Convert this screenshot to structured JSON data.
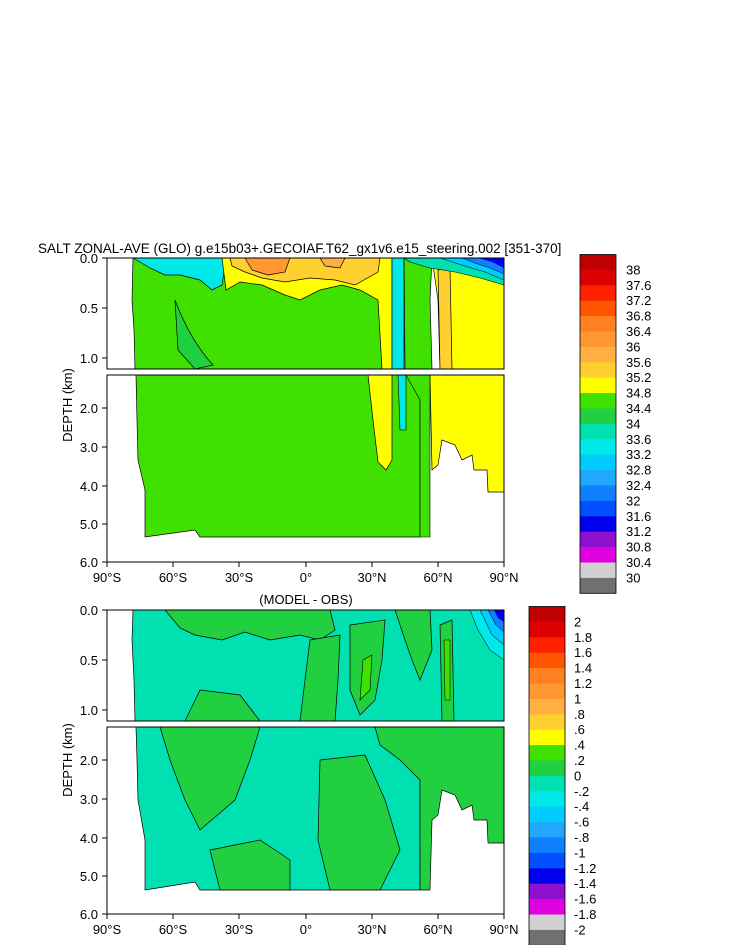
{
  "chart_data": [
    {
      "type": "heatmap",
      "title": "SALT ZONAL-AVE (GLO) g.e15b03+.GECOIAF.T62_gx1v6.e15_steering.002 [351-370]",
      "xlabel": "",
      "ylabel": "DEPTH (km)",
      "x_ticks": [
        "90°S",
        "60°S",
        "30°S",
        "0°",
        "30°N",
        "60°N",
        "90°N"
      ],
      "x_range": [
        -90,
        90
      ],
      "y_ticks_upper": [
        "0.0",
        "0.5",
        "1.0"
      ],
      "y_ticks_lower": [
        "2.0",
        "3.0",
        "4.0",
        "5.0",
        "6.0"
      ],
      "y_range": [
        0,
        6
      ],
      "colorbar": {
        "labels": [
          "38",
          "37.6",
          "37.2",
          "36.8",
          "36.4",
          "36",
          "35.6",
          "35.2",
          "34.8",
          "34.4",
          "34",
          "33.6",
          "33.2",
          "32.8",
          "32.4",
          "32",
          "31.6",
          "31.2",
          "30.8",
          "30.4",
          "30"
        ],
        "colors": [
          "#c00000",
          "#dd0000",
          "#ff2000",
          "#ff5500",
          "#ff8020",
          "#ff9830",
          "#ffb040",
          "#ffd030",
          "#ffff00",
          "#40e000",
          "#20d040",
          "#00e0b0",
          "#00e8e8",
          "#00ccff",
          "#20a8ff",
          "#1080ff",
          "#0050ff",
          "#0000ee",
          "#9010d0",
          "#e000e0",
          "#d0d0d0",
          "#707070"
        ]
      }
    },
    {
      "type": "heatmap",
      "title": "(MODEL - OBS)",
      "xlabel": "",
      "ylabel": "DEPTH (km)",
      "x_ticks": [
        "90°S",
        "60°S",
        "30°S",
        "0°",
        "30°N",
        "60°N",
        "90°N"
      ],
      "x_range": [
        -90,
        90
      ],
      "y_ticks_upper": [
        "0.0",
        "0.5",
        "1.0"
      ],
      "y_ticks_lower": [
        "2.0",
        "3.0",
        "4.0",
        "5.0",
        "6.0"
      ],
      "y_range": [
        0,
        6
      ],
      "colorbar": {
        "labels": [
          "2",
          "1.8",
          "1.6",
          "1.4",
          "1.2",
          "1",
          ".8",
          ".6",
          ".4",
          ".2",
          "0",
          "-.2",
          "-.4",
          "-.6",
          "-.8",
          "-1",
          "-1.2",
          "-1.4",
          "-1.6",
          "-1.8",
          "-2"
        ],
        "colors": [
          "#c00000",
          "#dd0000",
          "#ff2000",
          "#ff5500",
          "#ff8020",
          "#ff9830",
          "#ffb040",
          "#ffd030",
          "#ffff00",
          "#40e000",
          "#20d040",
          "#00e0b0",
          "#00e8e8",
          "#00ccff",
          "#20a8ff",
          "#1080ff",
          "#0050ff",
          "#0000ee",
          "#9010d0",
          "#e000e0",
          "#d0d0d0",
          "#707070"
        ]
      }
    }
  ]
}
